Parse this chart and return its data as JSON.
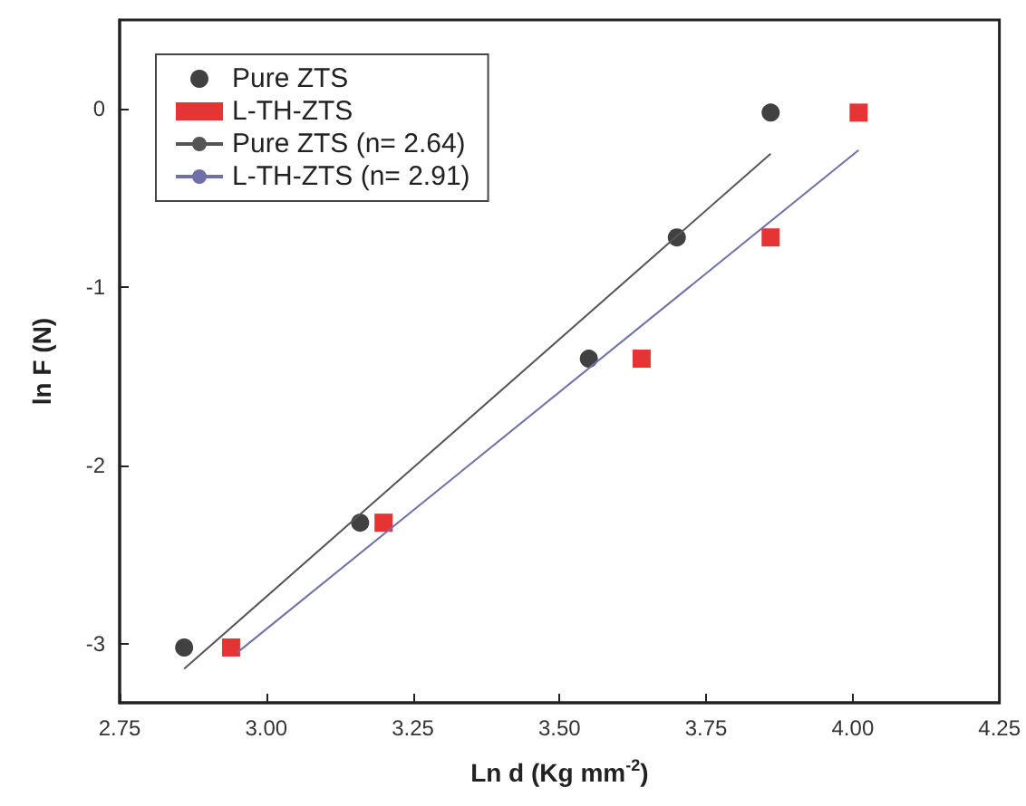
{
  "chart_data": {
    "type": "scatter",
    "xlabel": "Ln d (Kg mm$^{-2}$)",
    "ylabel": "ln F (N)",
    "xlim": [
      2.75,
      4.25
    ],
    "xticks": [
      {
        "value": 2.75,
        "label": "2.75"
      },
      {
        "value": 3.0,
        "label": "3.00"
      },
      {
        "value": 3.25,
        "label": "3.25"
      },
      {
        "value": 3.5,
        "label": "3.50"
      },
      {
        "value": 3.75,
        "label": "3.75"
      },
      {
        "value": 4.0,
        "label": "4.00"
      },
      {
        "value": 4.25,
        "label": "4.25"
      }
    ],
    "ylim": [
      -3.33,
      0.5
    ],
    "yticks": [
      -3,
      -2,
      -1,
      0
    ],
    "grid": false,
    "legend": "top left",
    "series": [
      {
        "name": "Pure ZTS",
        "marker": "circle",
        "color": "#111111",
        "x": [
          2.86,
          3.16,
          3.55,
          3.7,
          3.86
        ],
        "values": [
          -3.02,
          -2.32,
          -1.4,
          -0.72,
          -0.02
        ]
      },
      {
        "name": "L-TH-ZTS",
        "marker": "square",
        "color": "#e00000",
        "x": [
          2.94,
          3.2,
          3.64,
          3.86,
          4.01
        ],
        "values": [
          -3.02,
          -2.32,
          -1.4,
          -0.72,
          -0.02
        ]
      },
      {
        "name": "Pure ZTS (n= 2.64)",
        "type": "line",
        "marker": "none",
        "color": "#555555",
        "x": [
          2.86,
          3.86
        ],
        "values": [
          -3.14,
          -0.25
        ]
      },
      {
        "name": "L-TH-ZTS (n= 2.91)",
        "type": "line",
        "marker": "none",
        "color": "#6f70a8",
        "x": [
          2.95,
          4.01
        ],
        "values": [
          -3.05,
          -0.23
        ]
      }
    ]
  }
}
